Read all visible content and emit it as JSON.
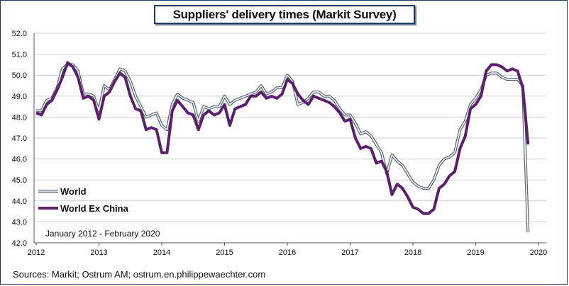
{
  "chart_data": {
    "type": "line",
    "title": "Suppliers' delivery times (Markit Survey)",
    "annotation": "January 2012 - February 2020",
    "source": "Sources: Markit; Ostrum AM; ostrum.en.philippewaechter.com",
    "ylim": [
      42.0,
      52.0
    ],
    "yticks": [
      "52.0",
      "51.0",
      "50.0",
      "49.0",
      "48.0",
      "47.0",
      "46.0",
      "45.0",
      "44.0",
      "43.0",
      "42.0"
    ],
    "xticks": [
      "2012",
      "2013",
      "2014",
      "2015",
      "2016",
      "2017",
      "2018",
      "2019",
      "2020"
    ],
    "legend": [
      "World",
      "World Ex China"
    ],
    "grid": true,
    "series": [
      {
        "name": "World",
        "color": "#4f6470",
        "values": [
          48.3,
          48.3,
          48.8,
          48.9,
          49.4,
          50.3,
          50.5,
          50.5,
          50.2,
          49.1,
          49.1,
          49.0,
          48.3,
          49.5,
          49.3,
          49.8,
          50.3,
          50.2,
          49.7,
          49.0,
          48.5,
          48.0,
          48.1,
          48.2,
          47.6,
          47.4,
          48.6,
          49.1,
          48.9,
          48.8,
          48.7,
          47.8,
          48.5,
          48.4,
          48.5,
          48.5,
          49.0,
          48.6,
          48.8,
          48.9,
          49.0,
          49.1,
          49.2,
          49.5,
          49.1,
          49.2,
          49.4,
          49.4,
          50.0,
          49.7,
          48.6,
          48.7,
          48.9,
          49.2,
          49.2,
          49.0,
          49.0,
          48.8,
          48.4,
          48.1,
          48.1,
          47.7,
          47.2,
          47.3,
          47.1,
          46.7,
          46.3,
          45.3,
          46.2,
          45.9,
          45.7,
          45.3,
          44.9,
          44.7,
          44.6,
          44.6,
          45.0,
          45.7,
          46.0,
          46.1,
          46.3,
          47.4,
          47.8,
          48.6,
          48.9,
          49.3,
          50.0,
          50.1,
          50.1,
          49.9,
          49.8,
          49.8,
          49.8,
          49.5,
          42.5
        ]
      },
      {
        "name": "World Ex China",
        "color": "#5b1f6e",
        "values": [
          48.2,
          48.1,
          48.6,
          48.8,
          49.3,
          49.9,
          50.6,
          50.4,
          49.9,
          48.9,
          49.0,
          48.8,
          47.9,
          49.0,
          49.2,
          49.7,
          50.1,
          49.9,
          49.0,
          48.4,
          48.3,
          47.4,
          47.5,
          47.4,
          46.3,
          46.3,
          48.3,
          48.8,
          48.5,
          48.2,
          48.1,
          47.4,
          48.1,
          48.3,
          48.1,
          48.2,
          48.6,
          47.6,
          48.4,
          48.5,
          48.6,
          49.0,
          49.0,
          49.2,
          48.9,
          49.0,
          48.9,
          49.1,
          49.8,
          49.6,
          49.1,
          48.8,
          48.6,
          49.0,
          48.9,
          48.8,
          48.7,
          48.5,
          48.2,
          47.8,
          47.9,
          47.0,
          46.5,
          46.6,
          46.5,
          45.8,
          45.9,
          45.4,
          44.3,
          44.8,
          44.6,
          44.2,
          43.7,
          43.6,
          43.4,
          43.4,
          43.6,
          44.6,
          44.8,
          45.2,
          45.4,
          46.5,
          47.1,
          48.4,
          48.6,
          49.0,
          50.2,
          50.5,
          50.5,
          50.4,
          50.2,
          50.3,
          50.2,
          49.4,
          46.7
        ]
      }
    ]
  }
}
